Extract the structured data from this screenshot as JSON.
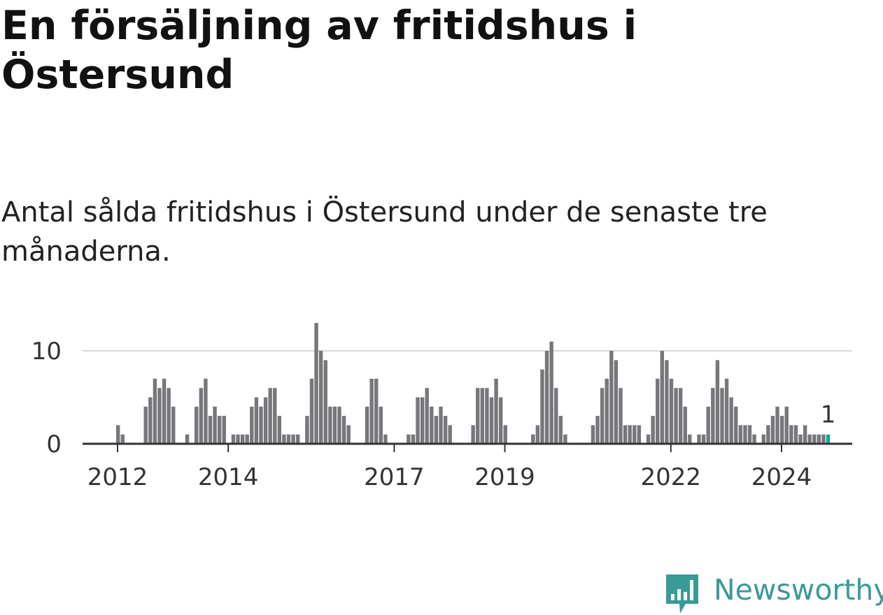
{
  "title": "En försäljning av fritidshus i Östersund",
  "subtitle": "Antal sålda fritidshus i Östersund under de senaste tre månaderna.",
  "brand": {
    "name": "Newsworthy",
    "logo_icon": "newsworthy-chart-bubble-icon"
  },
  "colors": {
    "bar": "#77767b",
    "highlight": "#1aa399",
    "grid": "#d9d9d9",
    "axis": "#333333",
    "brand": "#3a9a96"
  },
  "chart_data": {
    "type": "bar",
    "title": "",
    "xlabel": "",
    "ylabel": "",
    "start": "2012-01",
    "x_ticks": [
      "2012",
      "2014",
      "2017",
      "2019",
      "2022",
      "2024"
    ],
    "y_ticks": [
      0,
      10
    ],
    "ylim": [
      0,
      13
    ],
    "grid": true,
    "values": [
      2,
      1,
      0,
      0,
      0,
      0,
      4,
      5,
      7,
      6,
      7,
      6,
      4,
      0,
      0,
      1,
      0,
      4,
      6,
      7,
      3,
      4,
      3,
      3,
      0,
      1,
      1,
      1,
      1,
      4,
      5,
      4,
      5,
      6,
      6,
      3,
      1,
      1,
      1,
      1,
      0,
      3,
      7,
      13,
      10,
      9,
      4,
      4,
      4,
      3,
      2,
      0,
      0,
      0,
      4,
      7,
      7,
      4,
      1,
      0,
      0,
      0,
      0,
      1,
      1,
      5,
      5,
      6,
      4,
      3,
      4,
      3,
      2,
      0,
      0,
      0,
      0,
      2,
      6,
      6,
      6,
      5,
      7,
      5,
      2,
      0,
      0,
      0,
      0,
      0,
      1,
      2,
      8,
      10,
      11,
      6,
      3,
      1,
      0,
      0,
      0,
      0,
      0,
      2,
      3,
      6,
      7,
      10,
      9,
      6,
      2,
      2,
      2,
      2,
      0,
      1,
      3,
      7,
      10,
      9,
      7,
      6,
      6,
      4,
      1,
      0,
      1,
      1,
      4,
      6,
      9,
      6,
      7,
      5,
      4,
      2,
      2,
      2,
      1,
      0,
      1,
      2,
      3,
      4,
      3,
      4,
      2,
      2,
      1,
      2,
      1,
      1,
      1,
      1,
      1
    ],
    "highlight_last": true,
    "annotation": "1"
  }
}
